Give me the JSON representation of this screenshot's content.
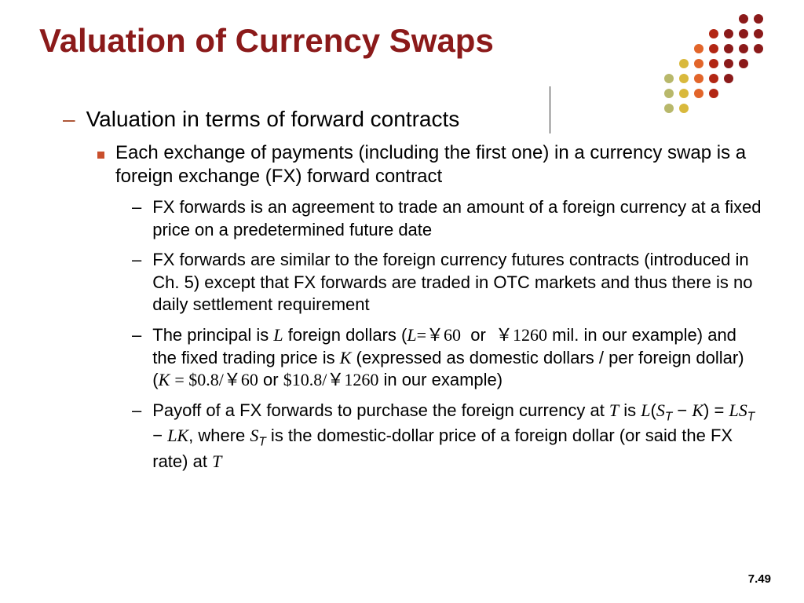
{
  "title": "Valuation of Currency Swaps",
  "page_number": "7.49",
  "level1_text": "Valuation in terms of forward contracts",
  "level2_text": "Each exchange of payments (including the first one) in a currency swap is a foreign exchange (FX) forward contract",
  "level3": {
    "item1": "FX forwards is an agreement to trade an amount of a foreign currency at a fixed price on a predetermined future date",
    "item2": "FX forwards are similar to the foreign currency futures contracts (introduced in Ch. 5) except that FX forwards are traded in OTC markets and thus there is no daily settlement requirement"
  },
  "decoration": {
    "colors": {
      "dark_red": "#8b1a1a",
      "red": "#b22613",
      "orange": "#e2652a",
      "yellow": "#d9b93c",
      "olive": "#b8b86b"
    },
    "dot_radius": 6,
    "spacing": 19
  },
  "colors": {
    "title": "#8b1a1a",
    "dash_accent": "#a84b2a",
    "bullet": "#c94f2c",
    "text": "#000000",
    "background": "#ffffff"
  }
}
